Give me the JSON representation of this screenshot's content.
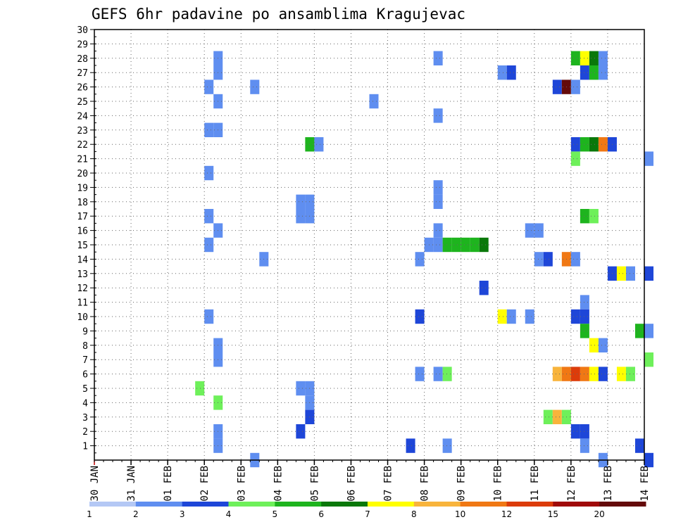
{
  "chart_data": {
    "type": "heatmap",
    "title": "GEFS 6hr padavine po ansamblima Kragujevac",
    "xlabel": "",
    "ylabel": "",
    "x_tick_labels": [
      "30 JAN",
      "31 JAN",
      "01 FEB",
      "02 FEB",
      "03 FEB",
      "04 FEB",
      "05 FEB",
      "06 FEB",
      "07 FEB",
      "08 FEB",
      "09 FEB",
      "10 FEB",
      "11 FEB",
      "12 FEB",
      "13 FEB",
      "14 FEB"
    ],
    "y_range": [
      0,
      30
    ],
    "y_ticks": [
      1,
      2,
      3,
      4,
      5,
      6,
      7,
      8,
      9,
      10,
      11,
      12,
      13,
      14,
      15,
      16,
      17,
      18,
      19,
      20,
      21,
      22,
      23,
      24,
      25,
      26,
      27,
      28,
      29,
      30
    ],
    "x_range_days": [
      0,
      15
    ],
    "grid": true,
    "legend": {
      "placement": "bottom",
      "colors": [
        "#b4c8f5",
        "#5f8ef0",
        "#1e46d8",
        "#6ef05a",
        "#1eb41e",
        "#0a780a",
        "#ffff00",
        "#f8b43c",
        "#f07814",
        "#dc3c0a",
        "#a00a0a",
        "#640a0a"
      ],
      "boundaries": [
        "1",
        "2",
        "3",
        "4",
        "5",
        "6",
        "7",
        "8",
        "10",
        "12",
        "15",
        "20"
      ]
    },
    "cells": [
      [
        28,
        3.25,
        1
      ],
      [
        27,
        3.25,
        1
      ],
      [
        26,
        3.0,
        1
      ],
      [
        26,
        4.25,
        1
      ],
      [
        25,
        3.25,
        1
      ],
      [
        25,
        7.5,
        1
      ],
      [
        23,
        3.0,
        1
      ],
      [
        23,
        3.25,
        1
      ],
      [
        22,
        5.75,
        4
      ],
      [
        22,
        6.0,
        1
      ],
      [
        20,
        3.0,
        1
      ],
      [
        18,
        5.5,
        1
      ],
      [
        18,
        5.75,
        1
      ],
      [
        17,
        3.0,
        1
      ],
      [
        17,
        5.5,
        1
      ],
      [
        17,
        5.75,
        1
      ],
      [
        16,
        3.25,
        1
      ],
      [
        15,
        3.0,
        1
      ],
      [
        14,
        4.5,
        1
      ],
      [
        10,
        3.0,
        1
      ],
      [
        8,
        3.25,
        1
      ],
      [
        7,
        3.25,
        1
      ],
      [
        5,
        2.75,
        3
      ],
      [
        5,
        5.5,
        1
      ],
      [
        5,
        5.75,
        1
      ],
      [
        4,
        3.25,
        3
      ],
      [
        4,
        5.75,
        1
      ],
      [
        3,
        5.75,
        2
      ],
      [
        2,
        3.25,
        1
      ],
      [
        2,
        5.5,
        2
      ],
      [
        1,
        3.25,
        1
      ],
      [
        0,
        4.25,
        1
      ],
      [
        28,
        9.25,
        1
      ],
      [
        24,
        9.25,
        1
      ],
      [
        19,
        9.25,
        1
      ],
      [
        18,
        9.25,
        1
      ],
      [
        16,
        9.25,
        1
      ],
      [
        14,
        8.75,
        1
      ],
      [
        15,
        9.0,
        1
      ],
      [
        15,
        9.25,
        1
      ],
      [
        15,
        9.5,
        4
      ],
      [
        15,
        9.75,
        4
      ],
      [
        15,
        10.0,
        4
      ],
      [
        15,
        10.25,
        4
      ],
      [
        15,
        10.5,
        5
      ],
      [
        12,
        10.5,
        2
      ],
      [
        10,
        8.75,
        2
      ],
      [
        6,
        8.75,
        1
      ],
      [
        6,
        9.25,
        1
      ],
      [
        6,
        9.5,
        3
      ],
      [
        1,
        8.5,
        2
      ],
      [
        1,
        9.5,
        1
      ],
      [
        27,
        11.0,
        1
      ],
      [
        27,
        11.25,
        2
      ],
      [
        16,
        11.75,
        1
      ],
      [
        16,
        12.0,
        1
      ],
      [
        14,
        12.0,
        1
      ],
      [
        14,
        12.25,
        2
      ],
      [
        10,
        11.0,
        6
      ],
      [
        10,
        11.25,
        1
      ],
      [
        10,
        11.75,
        1
      ],
      [
        3,
        12.25,
        3
      ],
      [
        3,
        12.5,
        7
      ],
      [
        3,
        12.75,
        3
      ],
      [
        28,
        13.0,
        4
      ],
      [
        28,
        13.25,
        6
      ],
      [
        28,
        13.5,
        5
      ],
      [
        28,
        13.75,
        1
      ],
      [
        27,
        13.25,
        2
      ],
      [
        27,
        13.5,
        4
      ],
      [
        27,
        13.75,
        1
      ],
      [
        26,
        12.5,
        2
      ],
      [
        26,
        12.75,
        11
      ],
      [
        26,
        13.0,
        1
      ],
      [
        22,
        13.0,
        2
      ],
      [
        22,
        13.25,
        4
      ],
      [
        22,
        13.5,
        5
      ],
      [
        22,
        13.75,
        8
      ],
      [
        22,
        14.0,
        2
      ],
      [
        21,
        13.0,
        3
      ],
      [
        21,
        15.0,
        1
      ],
      [
        17,
        13.25,
        4
      ],
      [
        17,
        13.5,
        3
      ],
      [
        14,
        12.75,
        8
      ],
      [
        14,
        13.0,
        1
      ],
      [
        13,
        14.0,
        2
      ],
      [
        13,
        14.25,
        6
      ],
      [
        13,
        14.5,
        1
      ],
      [
        13,
        15.0,
        2
      ],
      [
        11,
        13.25,
        1
      ],
      [
        10,
        13.0,
        2
      ],
      [
        10,
        13.25,
        2
      ],
      [
        9,
        13.25,
        4
      ],
      [
        9,
        14.75,
        4
      ],
      [
        9,
        15.0,
        1
      ],
      [
        8,
        13.5,
        6
      ],
      [
        8,
        13.75,
        1
      ],
      [
        7,
        15.0,
        3
      ],
      [
        6,
        12.5,
        7
      ],
      [
        6,
        12.75,
        8
      ],
      [
        6,
        13.0,
        9
      ],
      [
        6,
        13.25,
        8
      ],
      [
        6,
        13.5,
        6
      ],
      [
        6,
        13.75,
        2
      ],
      [
        6,
        14.25,
        6
      ],
      [
        6,
        14.5,
        3
      ],
      [
        2,
        13.0,
        2
      ],
      [
        2,
        13.25,
        2
      ],
      [
        1,
        13.25,
        1
      ],
      [
        1,
        14.75,
        2
      ],
      [
        0,
        13.75,
        1
      ],
      [
        0,
        15.0,
        2
      ]
    ]
  }
}
